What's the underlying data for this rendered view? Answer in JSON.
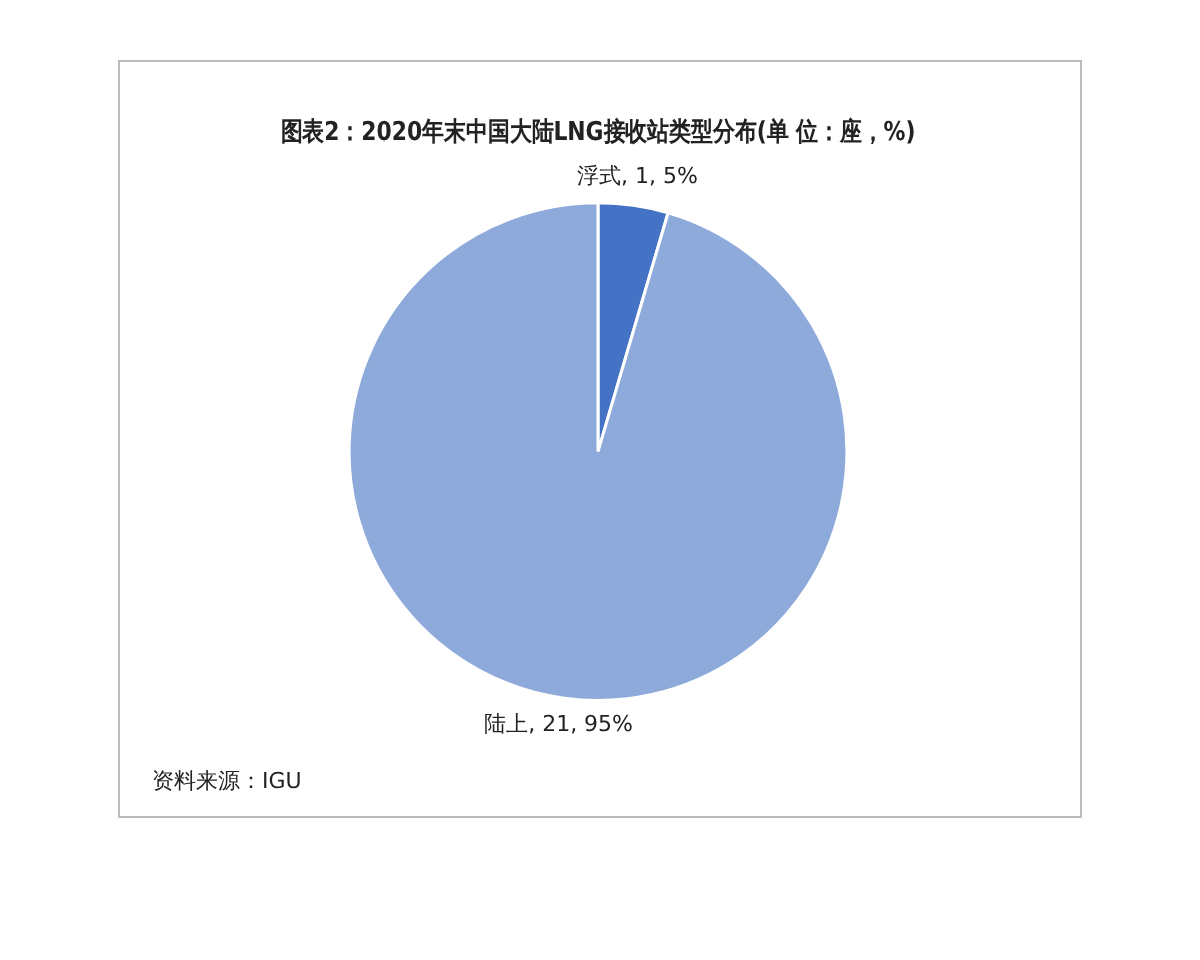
{
  "chart_data": {
    "type": "pie",
    "title": "图表2：2020年末中国大陆LNG接收站类型分布(单 位：座，%)",
    "categories": [
      "浮式",
      "陆上"
    ],
    "values": [
      1,
      21
    ],
    "colors": [
      "#4472c4",
      "#8eaadb"
    ],
    "value_labels": [
      "1, 5%",
      "21, 95%"
    ],
    "legend": false,
    "annotations": [
      "资料来源：IGU"
    ]
  }
}
